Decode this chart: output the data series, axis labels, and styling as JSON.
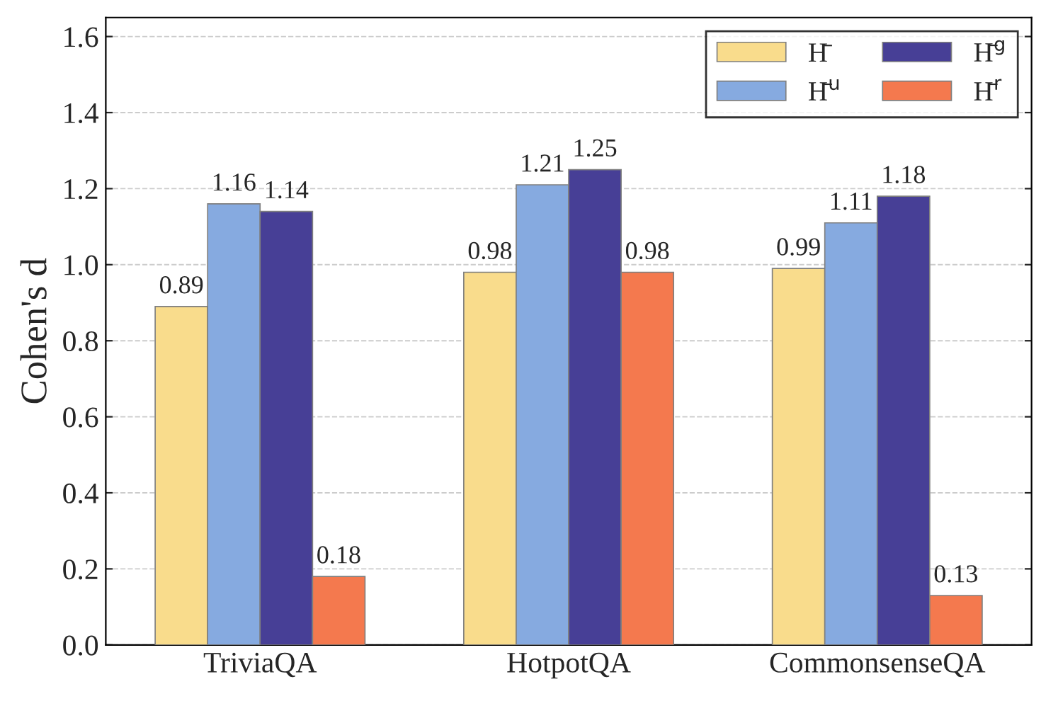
{
  "chart_data": {
    "type": "bar",
    "ylabel": "Cohen's d",
    "categories": [
      "TriviaQA",
      "HotpotQA",
      "CommonsenseQA"
    ],
    "series": [
      {
        "name": "H̄",
        "color": "#f9dc8c",
        "values": [
          0.89,
          0.98,
          0.99
        ]
      },
      {
        "name": "H̄$^{u}$",
        "color": "#86aae0",
        "values": [
          1.16,
          1.21,
          1.11
        ]
      },
      {
        "name": "H̄$^{g}$",
        "color": "#473f96",
        "values": [
          1.14,
          1.25,
          1.18
        ]
      },
      {
        "name": "H̄$^{r}$",
        "color": "#f4794e",
        "values": [
          0.18,
          0.98,
          0.13
        ]
      }
    ],
    "ylim": [
      0,
      1.65
    ],
    "yticks": [
      {
        "value": 0,
        "label": "0.0"
      },
      {
        "value": 0.2,
        "label": "0.2"
      },
      {
        "value": 0.4,
        "label": "0.4"
      },
      {
        "value": 0.6,
        "label": "0.6"
      },
      {
        "value": 0.8,
        "label": "0.8"
      },
      {
        "value": 1.0,
        "label": "1.0"
      },
      {
        "value": 1.2,
        "label": "1.2"
      },
      {
        "value": 1.4,
        "label": "1.4"
      },
      {
        "value": 1.6,
        "label": "1.6"
      }
    ],
    "grid": "y",
    "legend": "top right",
    "data_labels": true
  }
}
